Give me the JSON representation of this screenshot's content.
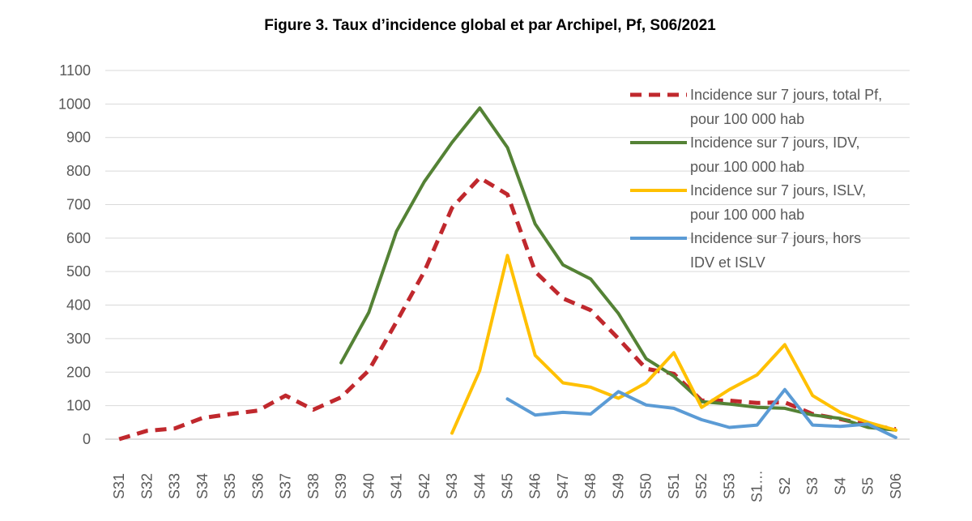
{
  "chart_data": {
    "type": "line",
    "title": "Figure 3. Taux d’incidence global et par Archipel, Pf, S06/2021",
    "xlabel": "",
    "ylabel": "",
    "ylim": [
      0,
      1100
    ],
    "yticks": [
      0,
      100,
      200,
      300,
      400,
      500,
      600,
      700,
      800,
      900,
      1000,
      1100
    ],
    "grid": true,
    "legend_position": "top-right",
    "categories": [
      "S31",
      "S32",
      "S33",
      "S34",
      "S35",
      "S36",
      "S37",
      "S38",
      "S39",
      "S40",
      "S41",
      "S42",
      "S43",
      "S44",
      "S45",
      "S46",
      "S47",
      "S48",
      "S49",
      "S50",
      "S51",
      "S52",
      "S53",
      "S1…",
      "S2",
      "S3",
      "S4",
      "S5",
      "S06"
    ],
    "series": [
      {
        "name": "Incidence sur 7 jours, total Pf, pour 100 000 hab",
        "legend_lines": [
          "Incidence sur 7 jours, total Pf,",
          "pour 100 000 hab"
        ],
        "color": "#c0282d",
        "dash": true,
        "values": [
          0,
          25,
          32,
          63,
          75,
          85,
          130,
          88,
          125,
          205,
          350,
          500,
          690,
          780,
          730,
          500,
          420,
          385,
          300,
          210,
          195,
          115,
          115,
          108,
          110,
          75,
          60,
          42,
          30
        ]
      },
      {
        "name": "Incidence sur 7 jours, IDV, pour 100 000 hab",
        "legend_lines": [
          "Incidence sur 7 jours, IDV,",
          "pour 100 000 hab"
        ],
        "color": "#548235",
        "dash": false,
        "values": [
          null,
          null,
          null,
          null,
          null,
          null,
          null,
          null,
          228,
          378,
          620,
          768,
          885,
          988,
          870,
          642,
          520,
          478,
          375,
          240,
          188,
          112,
          105,
          95,
          92,
          72,
          62,
          35,
          27
        ]
      },
      {
        "name": "Incidence sur 7 jours, ISLV, pour 100 000 hab",
        "legend_lines": [
          "Incidence sur 7 jours, ISLV,",
          "pour 100 000 hab"
        ],
        "color": "#ffc000",
        "dash": false,
        "values": [
          null,
          null,
          null,
          null,
          null,
          null,
          null,
          null,
          null,
          null,
          null,
          null,
          18,
          205,
          548,
          250,
          168,
          155,
          122,
          168,
          258,
          95,
          148,
          192,
          282,
          130,
          80,
          50,
          27
        ]
      },
      {
        "name": "Incidence sur 7 jours, hors IDV et ISLV",
        "legend_lines": [
          "Incidence sur 7 jours, hors",
          "IDV et ISLV"
        ],
        "color": "#5b9bd5",
        "dash": false,
        "values": [
          null,
          null,
          null,
          null,
          null,
          null,
          null,
          null,
          null,
          null,
          null,
          null,
          null,
          null,
          120,
          72,
          80,
          75,
          142,
          102,
          92,
          58,
          35,
          42,
          148,
          42,
          38,
          45,
          5
        ]
      }
    ]
  }
}
